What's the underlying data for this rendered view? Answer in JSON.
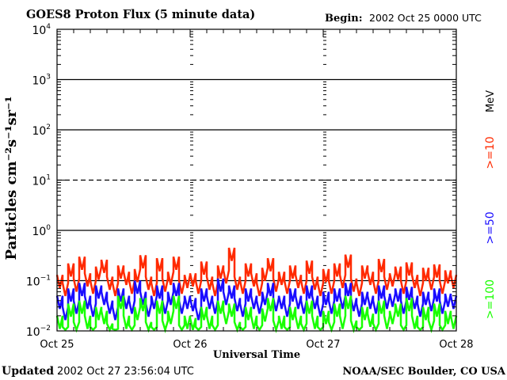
{
  "header": {
    "title": "GOES8 Proton Flux (5 minute data)",
    "begin_label": "Begin:",
    "begin_value": "2002 Oct 25 0000 UTC"
  },
  "footer": {
    "updated_label": "Updated",
    "updated_value": "2002 Oct 27 23:56:04 UTC",
    "source": "NOAA/SEC Boulder, CO USA"
  },
  "chart_data": {
    "type": "line",
    "title": "GOES8 Proton Flux (5 minute data)",
    "xlabel": "Universal Time",
    "ylabel": "Particles cm⁻²s⁻¹sr⁻¹",
    "yscale": "log",
    "ylim": [
      0.01,
      10000
    ],
    "ytick_exponents": [
      -2,
      -1,
      0,
      1,
      2,
      3,
      4
    ],
    "xticks": [
      "Oct 25",
      "Oct 26",
      "Oct 27",
      "Oct 28"
    ],
    "xlim_hours": [
      0,
      72
    ],
    "grid": "horizontal lines at each decade, dashed at 10^1; dashed day separators",
    "unit_label": "MeV",
    "sampling": "hourly approximation of 5-minute data",
    "series": [
      {
        "name": ">=10",
        "color": "#ff2a00",
        "values": [
          0.13,
          0.09,
          0.22,
          0.11,
          0.3,
          0.14,
          0.1,
          0.19,
          0.26,
          0.12,
          0.09,
          0.2,
          0.15,
          0.1,
          0.17,
          0.32,
          0.12,
          0.09,
          0.28,
          0.11,
          0.15,
          0.3,
          0.1,
          0.13,
          0.14,
          0.1,
          0.24,
          0.12,
          0.09,
          0.2,
          0.16,
          0.45,
          0.12,
          0.1,
          0.22,
          0.14,
          0.09,
          0.18,
          0.28,
          0.11,
          0.15,
          0.1,
          0.2,
          0.13,
          0.1,
          0.25,
          0.12,
          0.09,
          0.17,
          0.1,
          0.22,
          0.13,
          0.33,
          0.11,
          0.09,
          0.2,
          0.15,
          0.1,
          0.27,
          0.12,
          0.14,
          0.19,
          0.1,
          0.23,
          0.13,
          0.09,
          0.18,
          0.12,
          0.21,
          0.1,
          0.16,
          0.13
        ]
      },
      {
        "name": ">=50",
        "color": "#1a0dff",
        "values": [
          0.05,
          0.03,
          0.07,
          0.04,
          0.09,
          0.05,
          0.035,
          0.08,
          0.06,
          0.04,
          0.03,
          0.07,
          0.05,
          0.04,
          0.1,
          0.06,
          0.035,
          0.05,
          0.08,
          0.04,
          0.06,
          0.09,
          0.04,
          0.05,
          0.045,
          0.03,
          0.07,
          0.05,
          0.04,
          0.11,
          0.06,
          0.08,
          0.045,
          0.035,
          0.07,
          0.05,
          0.04,
          0.06,
          0.09,
          0.045,
          0.05,
          0.035,
          0.07,
          0.05,
          0.04,
          0.08,
          0.05,
          0.035,
          0.06,
          0.04,
          0.07,
          0.05,
          0.09,
          0.045,
          0.035,
          0.06,
          0.05,
          0.04,
          0.08,
          0.05,
          0.055,
          0.07,
          0.04,
          0.075,
          0.05,
          0.035,
          0.06,
          0.045,
          0.07,
          0.04,
          0.055,
          0.05
        ]
      },
      {
        "name": ">=100",
        "color": "#19ff00",
        "values": [
          0.02,
          0.012,
          0.035,
          0.015,
          0.04,
          0.02,
          0.012,
          0.03,
          0.025,
          0.014,
          0.011,
          0.05,
          0.02,
          0.013,
          0.03,
          0.045,
          0.015,
          0.012,
          0.04,
          0.016,
          0.025,
          0.05,
          0.013,
          0.02,
          0.018,
          0.012,
          0.03,
          0.02,
          0.013,
          0.04,
          0.025,
          0.035,
          0.015,
          0.012,
          0.03,
          0.02,
          0.013,
          0.028,
          0.045,
          0.016,
          0.02,
          0.012,
          0.03,
          0.02,
          0.014,
          0.04,
          0.02,
          0.012,
          0.025,
          0.015,
          0.035,
          0.02,
          0.05,
          0.016,
          0.012,
          0.03,
          0.022,
          0.014,
          0.04,
          0.02,
          0.025,
          0.035,
          0.013,
          0.045,
          0.02,
          0.012,
          0.03,
          0.016,
          0.035,
          0.013,
          0.025,
          0.02
        ]
      }
    ]
  }
}
